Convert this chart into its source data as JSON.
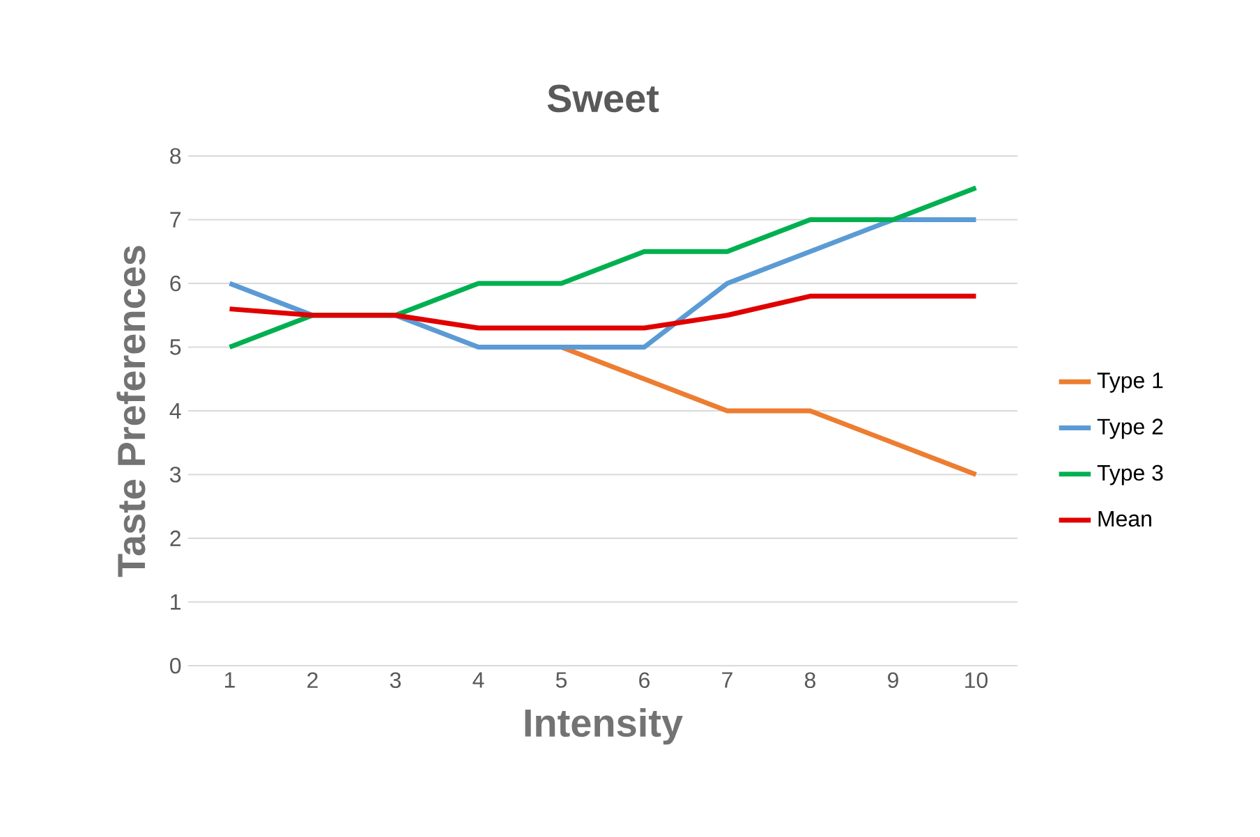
{
  "chart_data": {
    "type": "line",
    "title": "Sweet",
    "xlabel": "Intensity",
    "ylabel": "Taste Preferences",
    "categories": [
      "1",
      "2",
      "3",
      "4",
      "5",
      "6",
      "7",
      "8",
      "9",
      "10"
    ],
    "series": [
      {
        "name": "Type 1",
        "color": "#ed7d31",
        "values": [
          null,
          null,
          null,
          null,
          5,
          4.5,
          4,
          4,
          3.5,
          3
        ]
      },
      {
        "name": "Type 2",
        "color": "#5b9bd5",
        "values": [
          6,
          5.5,
          5.5,
          5,
          5,
          5,
          6,
          6.5,
          7,
          7
        ]
      },
      {
        "name": "Type 3",
        "color": "#00b050",
        "values": [
          5,
          5.5,
          5.5,
          6,
          6,
          6.5,
          6.5,
          7,
          7,
          7.5
        ]
      },
      {
        "name": "Mean",
        "color": "#e00000",
        "values": [
          5.6,
          5.5,
          5.5,
          5.3,
          5.3,
          5.3,
          5.5,
          5.8,
          5.8,
          5.8
        ]
      }
    ],
    "ylim": [
      0,
      8
    ],
    "yticks": [
      0,
      1,
      2,
      3,
      4,
      5,
      6,
      7,
      8
    ],
    "grid": "y",
    "legend": "right",
    "marker": "none",
    "line_style": "solid"
  }
}
